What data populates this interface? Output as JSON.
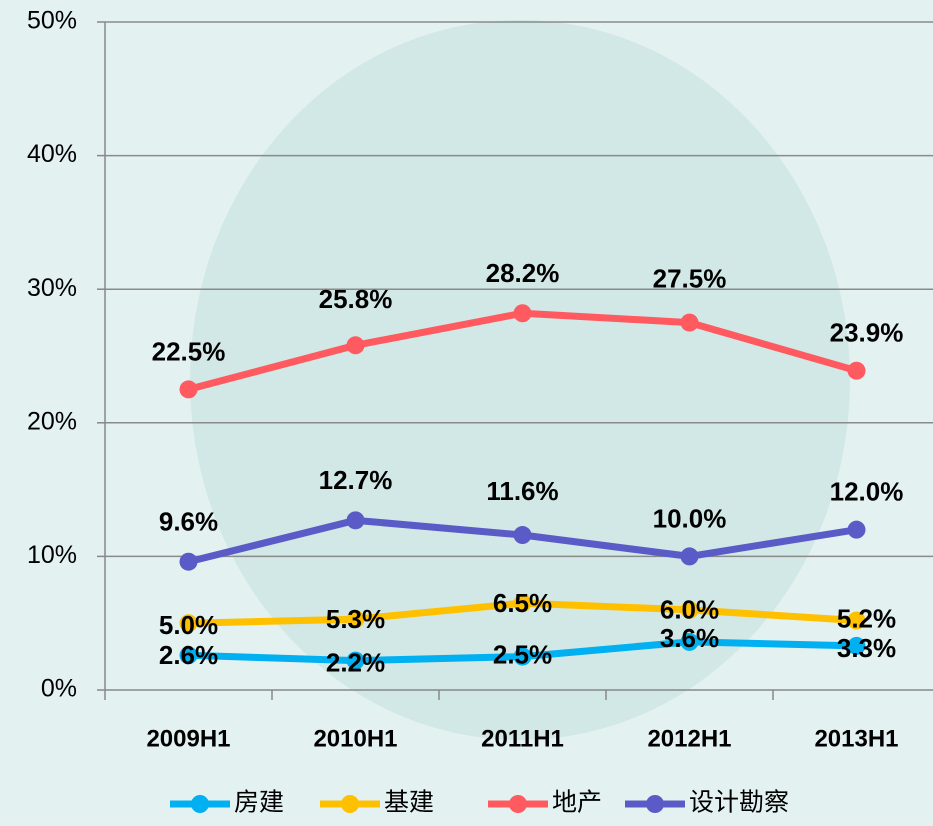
{
  "chart_data": {
    "type": "line",
    "categories": [
      "2009H1",
      "2010H1",
      "2011H1",
      "2012H1",
      "2013H1"
    ],
    "series": [
      {
        "name": "房建",
        "color": "#00b0f0",
        "values": [
          2.6,
          2.2,
          2.5,
          3.6,
          3.3
        ],
        "value_labels": [
          "2.6%",
          "2.2%",
          "2.5%",
          "3.6%",
          "3.3%"
        ]
      },
      {
        "name": "基建",
        "color": "#ffc000",
        "values": [
          5.0,
          5.3,
          6.5,
          6.0,
          5.2
        ],
        "value_labels": [
          "5.0%",
          "5.3%",
          "6.5%",
          "6.0%",
          "5.2%"
        ]
      },
      {
        "name": "地产",
        "color": "#ff5a5f",
        "values": [
          22.5,
          25.8,
          28.2,
          27.5,
          23.9
        ],
        "value_labels": [
          "22.5%",
          "25.8%",
          "28.2%",
          "27.5%",
          "23.9%"
        ]
      },
      {
        "name": "设计勘察",
        "color": "#5b5bc8",
        "values": [
          9.6,
          12.7,
          11.6,
          10.0,
          12.0
        ],
        "value_labels": [
          "9.6%",
          "12.7%",
          "11.6%",
          "10.0%",
          "12.0%"
        ]
      }
    ],
    "ylim": [
      0,
      50
    ],
    "yticks": [
      {
        "value": 0,
        "label": "0%"
      },
      {
        "value": 10,
        "label": "10%"
      },
      {
        "value": 20,
        "label": "20%"
      },
      {
        "value": 30,
        "label": "30%"
      },
      {
        "value": 40,
        "label": "40%"
      },
      {
        "value": 50,
        "label": "50%"
      }
    ],
    "grid": true,
    "legend": "bottom"
  }
}
